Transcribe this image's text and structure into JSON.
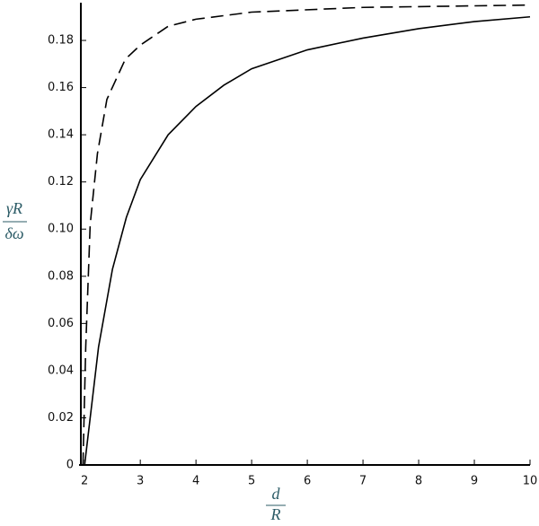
{
  "chart_data": {
    "type": "line",
    "x_label": {
      "numerator": "d",
      "denominator": "R"
    },
    "y_label": {
      "numerator": "γR",
      "denominator": "δω"
    },
    "xlim": [
      1.9,
      10
    ],
    "ylim": [
      0,
      0.196
    ],
    "xticks": [
      2,
      3,
      4,
      5,
      6,
      7,
      8,
      9,
      10
    ],
    "yticks": [
      0,
      0.02,
      0.04,
      0.06,
      0.08,
      {
        "value": 0.1,
        "label": "0.10"
      },
      0.12,
      0.14,
      0.16,
      0.18
    ],
    "series": [
      {
        "color": "#000000",
        "dash": false,
        "x": [
          2,
          2.25,
          2.5,
          2.75,
          3,
          3.5,
          4,
          4.5,
          5,
          6,
          7,
          8,
          9,
          10
        ],
        "values": [
          0,
          0.05,
          0.083,
          0.105,
          0.121,
          0.14,
          0.152,
          0.161,
          0.168,
          0.176,
          0.181,
          0.185,
          0.188,
          0.19
        ]
      },
      {
        "color": "#000000",
        "dash": true,
        "x": [
          1.97,
          2.02,
          2.1,
          2.23,
          2.4,
          2.73,
          3,
          3.5,
          4,
          5,
          7,
          10
        ],
        "values": [
          0,
          0.05,
          0.102,
          0.132,
          0.155,
          0.172,
          0.178,
          0.186,
          0.189,
          0.192,
          0.194,
          0.195
        ]
      }
    ]
  }
}
